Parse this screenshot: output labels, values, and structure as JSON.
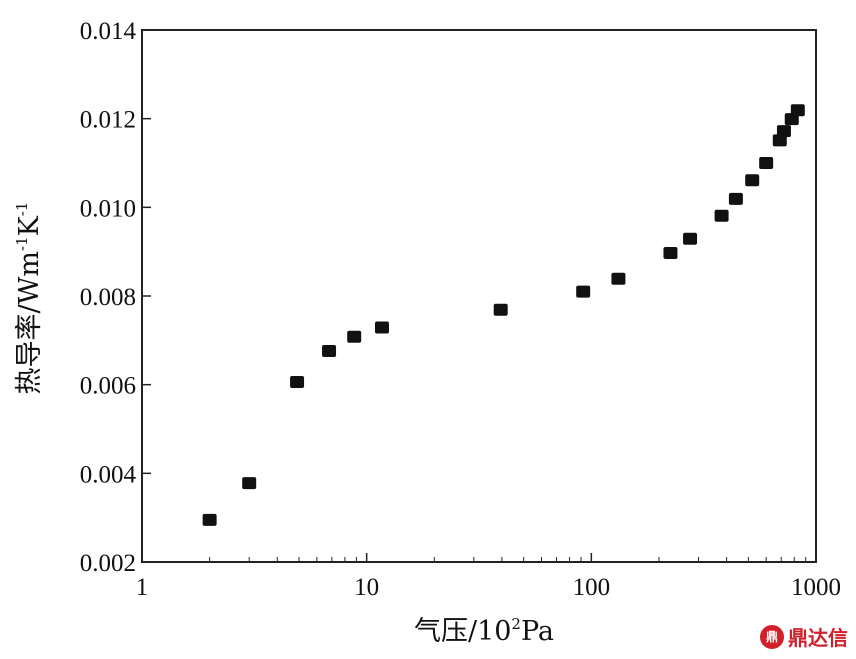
{
  "chart_data": {
    "type": "scatter",
    "xscale": "log",
    "xlim": [
      1,
      1000
    ],
    "ylim": [
      0.002,
      0.014
    ],
    "xticks": [
      1,
      10,
      100,
      1000
    ],
    "xtick_labels": [
      "1",
      "10",
      "100",
      "1000"
    ],
    "yticks": [
      0.002,
      0.004,
      0.006,
      0.008,
      0.01,
      0.012,
      0.014
    ],
    "ytick_labels": [
      "0.002",
      "0.004",
      "0.006",
      "0.008",
      "0.010",
      "0.012",
      "0.014"
    ],
    "xlabel": {
      "main": "气压/10",
      "sup": "2",
      "tail": "Pa"
    },
    "ylabel": {
      "a": "热导率/Wm",
      "sup1": "-1",
      "b": "K",
      "sup2": "-1"
    },
    "grid": false,
    "marker": "square",
    "marker_color": "#111111",
    "points": [
      {
        "x": 2.0,
        "y": 0.00295
      },
      {
        "x": 3.0,
        "y": 0.00378
      },
      {
        "x": 4.9,
        "y": 0.00606
      },
      {
        "x": 6.8,
        "y": 0.00676
      },
      {
        "x": 8.8,
        "y": 0.00708
      },
      {
        "x": 11.7,
        "y": 0.00729
      },
      {
        "x": 39.5,
        "y": 0.00769
      },
      {
        "x": 92,
        "y": 0.0081
      },
      {
        "x": 132,
        "y": 0.00839
      },
      {
        "x": 225,
        "y": 0.00897
      },
      {
        "x": 275,
        "y": 0.00929
      },
      {
        "x": 380,
        "y": 0.00981
      },
      {
        "x": 440,
        "y": 0.01019
      },
      {
        "x": 520,
        "y": 0.01061
      },
      {
        "x": 600,
        "y": 0.011
      },
      {
        "x": 690,
        "y": 0.01151
      },
      {
        "x": 720,
        "y": 0.01172
      },
      {
        "x": 780,
        "y": 0.01199
      },
      {
        "x": 830,
        "y": 0.01219
      }
    ]
  },
  "watermark": {
    "text": "鼎达信",
    "logo_glyph": "鼎",
    "color": "#d0202a"
  }
}
